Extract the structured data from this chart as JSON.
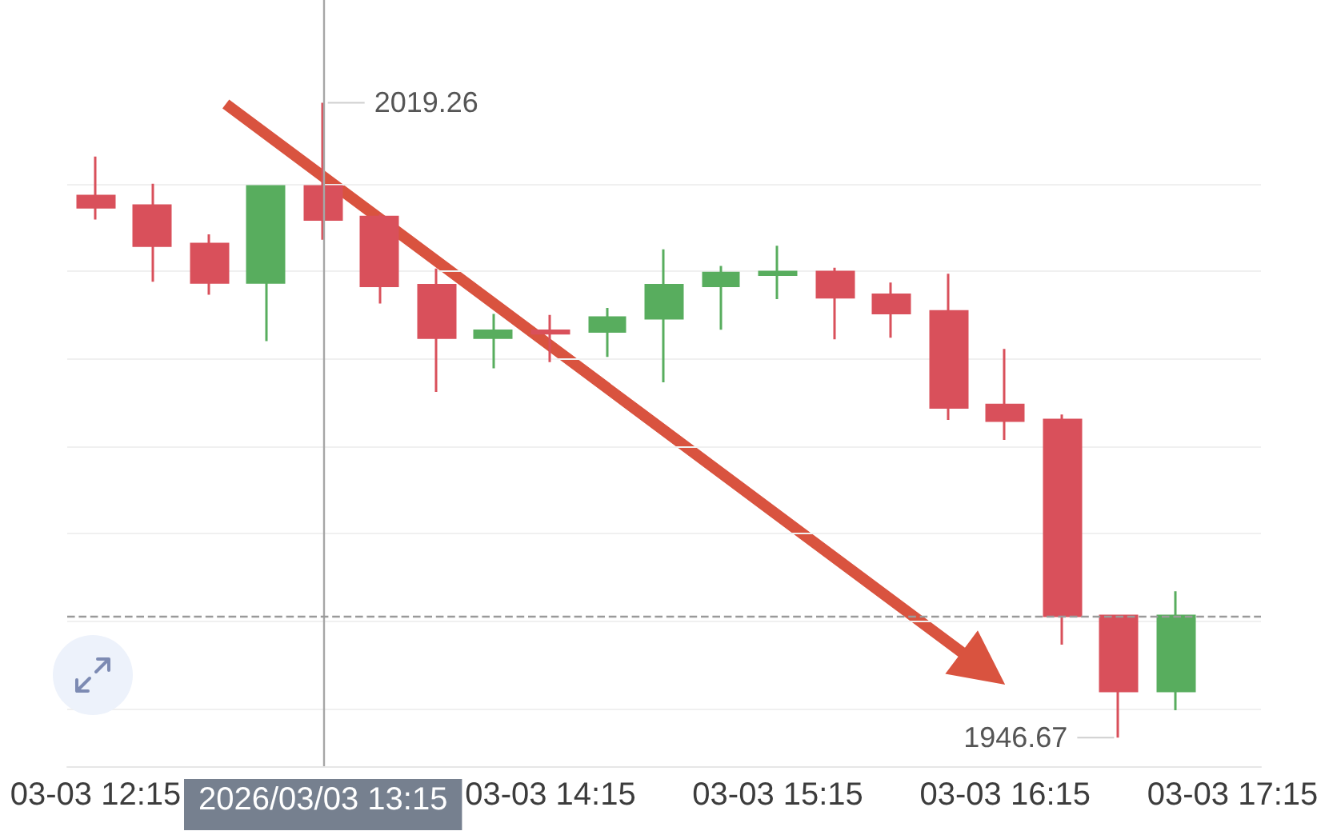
{
  "chart_data": {
    "type": "candlestick",
    "categories": [
      "03-03 12:15",
      null,
      null,
      null,
      "2026/03/03 13:15",
      null,
      null,
      null,
      "03-03 14:15",
      null,
      null,
      null,
      "03-03 15:15",
      null,
      null,
      null,
      "03-03 16:15",
      null,
      null,
      null,
      "03-03 17:15"
    ],
    "ohlc": [
      [
        2008.6,
        2013.1,
        2005.9,
        2007.3
      ],
      [
        2007.5,
        2010.0,
        1998.8,
        2002.9
      ],
      [
        2003.1,
        2004.2,
        1997.3,
        1998.7
      ],
      [
        1998.7,
        2009.7,
        1992.0,
        2009.7
      ],
      [
        2009.7,
        2019.26,
        2003.6,
        2005.9
      ],
      [
        2006.2,
        2006.5,
        1996.3,
        1998.3
      ],
      [
        1998.4,
        2000.3,
        1986.2,
        1992.4
      ],
      [
        1992.4,
        1995.1,
        1988.9,
        1993.2
      ],
      [
        1993.2,
        1995.0,
        1989.6,
        1992.9
      ],
      [
        1993.1,
        1995.8,
        1990.2,
        1994.7
      ],
      [
        1994.6,
        2002.5,
        1987.3,
        1998.4
      ],
      [
        1998.3,
        2000.6,
        1993.3,
        1999.8
      ],
      [
        1999.6,
        2002.9,
        1996.8,
        1999.9
      ],
      [
        1999.9,
        2000.4,
        1992.2,
        1997.0
      ],
      [
        1997.3,
        1998.7,
        1992.4,
        1995.2
      ],
      [
        1995.4,
        1999.7,
        1983.0,
        1984.4
      ],
      [
        1984.7,
        1991.1,
        1980.7,
        1982.9
      ],
      [
        1983.0,
        1983.6,
        1957.3,
        1960.6
      ],
      [
        1960.6,
        1960.6,
        1946.67,
        1952.0
      ],
      [
        1952.0,
        1963.4,
        1949.8,
        1960.6
      ],
      null
    ],
    "colors": [
      "#d9505b",
      "#d9505b",
      "#d9505b",
      "#58ad5e",
      "#d9505b",
      "#d9505b",
      "#d9505b",
      "#58ad5e",
      "#d9505b",
      "#58ad5e",
      "#58ad5e",
      "#58ad5e",
      "#58ad5e",
      "#d9505b",
      "#d9505b",
      "#d9505b",
      "#d9505b",
      "#d9505b",
      "#d9505b",
      "#58ad5e",
      null
    ],
    "ylim": [
      1943.4,
      2031.0
    ],
    "yticks": [
      {
        "value": 1950,
        "label": null
      },
      {
        "value": 1960,
        "label": null
      },
      {
        "value": 1970,
        "label": null
      },
      {
        "value": 1980,
        "label": null
      },
      {
        "value": 1990,
        "label": null
      },
      {
        "value": 2000,
        "label": null
      },
      {
        "value": 2010,
        "label": null
      }
    ],
    "grid": "y",
    "tick_labels": "x",
    "ref_lines": [
      {
        "axis": "x",
        "value": "2026/03/03 13:15",
        "color": "#a6a6a6"
      },
      {
        "axis": "y",
        "value": 1960.6,
        "color": "#9a9a9a",
        "line_style": "dashed"
      }
    ],
    "annotations": [
      {
        "text": "2019.26",
        "x": "2026/03/03 13:15",
        "y": 2019.26
      },
      "1946.67"
    ]
  }
}
